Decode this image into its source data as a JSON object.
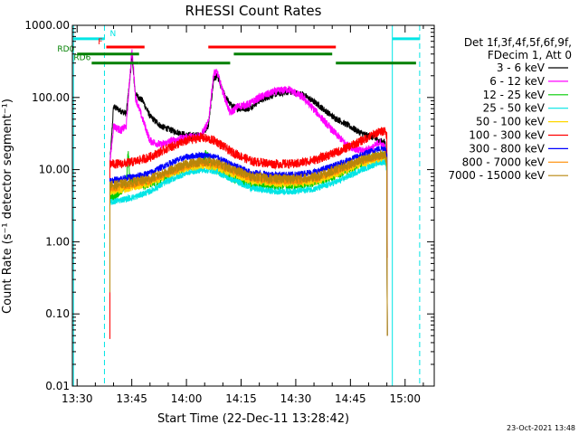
{
  "chart_data": {
    "type": "line",
    "title": "RHESSI Count Rates",
    "xlabel": "Start Time (22-Dec-11 13:28:42)",
    "ylabel": "Count Rate (s⁻¹ detector segment⁻¹)",
    "y_scale": "log",
    "ylim": [
      0.01,
      1000
    ],
    "xlim": [
      "13:28:42",
      "15:08:00"
    ],
    "x_ticks": [
      "13:30",
      "13:45",
      "14:00",
      "14:15",
      "14:30",
      "14:45",
      "15:00"
    ],
    "y_ticks": [
      "0.01",
      "0.10",
      "1.00",
      "10.00",
      "100.00",
      "1000.00"
    ],
    "legend": {
      "position": "right",
      "header": [
        "Det 1f,3f,4f,5f,6f,9f,",
        "FDecim 1, Att 0"
      ]
    },
    "series": [
      {
        "name": "3 - 6 keV",
        "color": "#000000",
        "points": [
          [
            "13:39:00",
            12
          ],
          [
            "13:40:00",
            75
          ],
          [
            "13:42:00",
            65
          ],
          [
            "13:43:30",
            60
          ],
          [
            "13:44:30",
            180
          ],
          [
            "13:45:00",
            400
          ],
          [
            "13:45:30",
            200
          ],
          [
            "13:46:00",
            110
          ],
          [
            "13:48:00",
            90
          ],
          [
            "13:50:00",
            55
          ],
          [
            "13:53:00",
            40
          ],
          [
            "13:56:00",
            35
          ],
          [
            "14:00:00",
            30
          ],
          [
            "14:04:00",
            30
          ],
          [
            "14:06:00",
            40
          ],
          [
            "14:07:30",
            180
          ],
          [
            "14:08:30",
            200
          ],
          [
            "14:10:00",
            120
          ],
          [
            "14:12:00",
            80
          ],
          [
            "14:14:00",
            70
          ],
          [
            "14:17:00",
            70
          ],
          [
            "14:20:00",
            90
          ],
          [
            "14:24:00",
            110
          ],
          [
            "14:28:00",
            120
          ],
          [
            "14:32:00",
            110
          ],
          [
            "14:36:00",
            80
          ],
          [
            "14:40:00",
            55
          ],
          [
            "14:44:00",
            42
          ],
          [
            "14:48:00",
            32
          ],
          [
            "14:51:00",
            28
          ],
          [
            "14:53:00",
            25
          ],
          [
            "14:54:30",
            24
          ],
          [
            "14:55:00",
            15
          ]
        ]
      },
      {
        "name": "6 - 12 keV",
        "color": "#ff00ff",
        "points": [
          [
            "13:39:00",
            12
          ],
          [
            "13:40:00",
            40
          ],
          [
            "13:42:00",
            35
          ],
          [
            "13:43:30",
            40
          ],
          [
            "13:44:30",
            200
          ],
          [
            "13:45:00",
            450
          ],
          [
            "13:45:30",
            250
          ],
          [
            "13:46:00",
            100
          ],
          [
            "13:48:00",
            50
          ],
          [
            "13:50:00",
            25
          ],
          [
            "13:53:00",
            22
          ],
          [
            "13:56:00",
            25
          ],
          [
            "14:00:00",
            28
          ],
          [
            "14:04:00",
            30
          ],
          [
            "14:06:00",
            45
          ],
          [
            "14:07:30",
            220
          ],
          [
            "14:08:30",
            220
          ],
          [
            "14:10:00",
            120
          ],
          [
            "14:12:00",
            60
          ],
          [
            "14:14:00",
            75
          ],
          [
            "14:17:00",
            80
          ],
          [
            "14:20:00",
            100
          ],
          [
            "14:24:00",
            120
          ],
          [
            "14:28:00",
            130
          ],
          [
            "14:32:00",
            100
          ],
          [
            "14:36:00",
            60
          ],
          [
            "14:40:00",
            35
          ],
          [
            "14:44:00",
            22
          ],
          [
            "14:48:00",
            18
          ],
          [
            "14:51:00",
            20
          ],
          [
            "14:53:00",
            24
          ],
          [
            "14:54:30",
            20
          ],
          [
            "14:55:00",
            12
          ]
        ]
      },
      {
        "name": "12 - 25 keV",
        "color": "#00cc00",
        "points": [
          [
            "13:39:00",
            4
          ],
          [
            "13:41:00",
            4.5
          ],
          [
            "13:43:30",
            6
          ],
          [
            "13:44:00",
            18
          ],
          [
            "13:44:30",
            7
          ],
          [
            "13:48:00",
            6
          ],
          [
            "13:52:00",
            7
          ],
          [
            "13:56:00",
            9
          ],
          [
            "14:00:00",
            11
          ],
          [
            "14:04:00",
            12
          ],
          [
            "14:05:30",
            17
          ],
          [
            "14:07:00",
            11
          ],
          [
            "14:12:00",
            8
          ],
          [
            "14:16:00",
            6.5
          ],
          [
            "14:22:00",
            6
          ],
          [
            "14:28:00",
            6
          ],
          [
            "14:34:00",
            6.5
          ],
          [
            "14:40:00",
            8
          ],
          [
            "14:46:00",
            11
          ],
          [
            "14:50:00",
            14
          ],
          [
            "14:54:00",
            16
          ],
          [
            "14:55:00",
            13
          ]
        ]
      },
      {
        "name": "25 - 50 keV",
        "color": "#00e5e5",
        "points": [
          [
            "13:39:00",
            3.5
          ],
          [
            "13:42:00",
            3.8
          ],
          [
            "13:46:00",
            4.2
          ],
          [
            "13:50:00",
            5
          ],
          [
            "13:55:00",
            7
          ],
          [
            "14:00:00",
            9
          ],
          [
            "14:04:00",
            10
          ],
          [
            "14:08:00",
            9.5
          ],
          [
            "14:12:00",
            7.5
          ],
          [
            "14:18:00",
            5.5
          ],
          [
            "14:24:00",
            5
          ],
          [
            "14:30:00",
            5
          ],
          [
            "14:36:00",
            5.5
          ],
          [
            "14:42:00",
            7
          ],
          [
            "14:48:00",
            10
          ],
          [
            "14:52:00",
            12
          ],
          [
            "14:54:30",
            13
          ],
          [
            "14:55:00",
            10
          ]
        ]
      },
      {
        "name": "50 - 100 keV",
        "color": "#ffd700",
        "points": [
          [
            "13:39:00",
            5
          ],
          [
            "13:42:00",
            5.2
          ],
          [
            "13:46:00",
            5.8
          ],
          [
            "13:50:00",
            6.5
          ],
          [
            "13:55:00",
            8.5
          ],
          [
            "14:00:00",
            10.5
          ],
          [
            "14:04:00",
            11.5
          ],
          [
            "14:08:00",
            11
          ],
          [
            "14:12:00",
            9
          ],
          [
            "14:18:00",
            7
          ],
          [
            "14:24:00",
            6.5
          ],
          [
            "14:30:00",
            6.5
          ],
          [
            "14:36:00",
            7
          ],
          [
            "14:42:00",
            9
          ],
          [
            "14:48:00",
            12
          ],
          [
            "14:52:00",
            14
          ],
          [
            "14:54:30",
            15
          ],
          [
            "14:55:00",
            11
          ]
        ]
      },
      {
        "name": "100 - 300 keV",
        "color": "#ff0000",
        "points": [
          [
            "13:39:00",
            12
          ],
          [
            "13:42:00",
            12
          ],
          [
            "13:46:00",
            13
          ],
          [
            "13:50:00",
            15
          ],
          [
            "13:55:00",
            20
          ],
          [
            "14:00:00",
            25
          ],
          [
            "14:04:00",
            28
          ],
          [
            "14:08:00",
            25
          ],
          [
            "14:12:00",
            18
          ],
          [
            "14:18:00",
            13
          ],
          [
            "14:24:00",
            12
          ],
          [
            "14:30:00",
            12
          ],
          [
            "14:36:00",
            14
          ],
          [
            "14:42:00",
            18
          ],
          [
            "14:48:00",
            25
          ],
          [
            "14:52:00",
            32
          ],
          [
            "14:54:30",
            35
          ],
          [
            "14:55:00",
            30
          ]
        ]
      },
      {
        "name": "300 - 800 keV",
        "color": "#0000ff",
        "points": [
          [
            "13:39:00",
            7
          ],
          [
            "13:42:00",
            7.5
          ],
          [
            "13:46:00",
            8
          ],
          [
            "13:50:00",
            9
          ],
          [
            "13:55:00",
            12
          ],
          [
            "14:00:00",
            15
          ],
          [
            "14:04:00",
            16
          ],
          [
            "14:08:00",
            15
          ],
          [
            "14:12:00",
            12
          ],
          [
            "14:18:00",
            9
          ],
          [
            "14:24:00",
            8.5
          ],
          [
            "14:30:00",
            8.5
          ],
          [
            "14:36:00",
            9.5
          ],
          [
            "14:42:00",
            12
          ],
          [
            "14:48:00",
            16
          ],
          [
            "14:52:00",
            19
          ],
          [
            "14:54:30",
            20
          ],
          [
            "14:55:00",
            16
          ]
        ]
      },
      {
        "name": "800 - 7000 keV",
        "color": "#ff8c00",
        "points": [
          [
            "13:39:00",
            5.5
          ],
          [
            "13:42:00",
            5.8
          ],
          [
            "13:46:00",
            6.3
          ],
          [
            "13:50:00",
            7
          ],
          [
            "13:55:00",
            9
          ],
          [
            "14:00:00",
            11
          ],
          [
            "14:04:00",
            12.5
          ],
          [
            "14:08:00",
            12
          ],
          [
            "14:12:00",
            10
          ],
          [
            "14:18:00",
            7.5
          ],
          [
            "14:24:00",
            7
          ],
          [
            "14:30:00",
            7
          ],
          [
            "14:36:00",
            7.5
          ],
          [
            "14:42:00",
            10
          ],
          [
            "14:48:00",
            13
          ],
          [
            "14:52:00",
            15
          ],
          [
            "14:54:30",
            16
          ],
          [
            "14:55:00",
            12
          ]
        ]
      },
      {
        "name": "7000 - 15000 keV",
        "color": "#b8860b",
        "points": [
          [
            "13:39:00",
            6
          ],
          [
            "13:42:00",
            6.3
          ],
          [
            "13:46:00",
            6.8
          ],
          [
            "13:50:00",
            7.5
          ],
          [
            "13:55:00",
            9.5
          ],
          [
            "14:00:00",
            12
          ],
          [
            "14:04:00",
            13
          ],
          [
            "14:08:00",
            12.5
          ],
          [
            "14:12:00",
            10.5
          ],
          [
            "14:18:00",
            8
          ],
          [
            "14:24:00",
            7.5
          ],
          [
            "14:30:00",
            7.5
          ],
          [
            "14:36:00",
            8
          ],
          [
            "14:42:00",
            10.5
          ],
          [
            "14:48:00",
            13.5
          ],
          [
            "14:52:00",
            15.5
          ],
          [
            "14:54:30",
            16.5
          ],
          [
            "14:55:00",
            12.5
          ]
        ]
      }
    ],
    "annotation_bars": [
      {
        "label": "N",
        "color": "#00e5e5",
        "y": 650,
        "segments": [
          [
            "13:29:00",
            "13:37:30"
          ],
          [
            "14:56:30",
            "15:04:00"
          ]
        ]
      },
      {
        "label": "F",
        "color": "#ff0000",
        "y": 500,
        "segments": [
          [
            "13:38:00",
            "13:48:30"
          ],
          [
            "14:06:00",
            "14:41:00"
          ]
        ]
      },
      {
        "label": "RD0",
        "color": "#008000",
        "y": 400,
        "segments": [
          [
            "13:30:00",
            "13:47:00"
          ],
          [
            "14:13:00",
            "14:40:00"
          ]
        ]
      },
      {
        "label": "RD6",
        "color": "#008000",
        "y": 300,
        "segments": [
          [
            "13:34:00",
            "13:47:00"
          ],
          [
            "13:47:00",
            "14:12:00"
          ],
          [
            "14:41:00",
            "15:03:00"
          ]
        ]
      }
    ],
    "vlines": [
      {
        "time": "13:29:00",
        "style": "solid",
        "color": "#00e5e5"
      },
      {
        "time": "13:37:30",
        "style": "dashed",
        "color": "#00e5e5"
      },
      {
        "time": "14:56:30",
        "style": "solid",
        "color": "#00e5e5"
      },
      {
        "time": "15:04:00",
        "style": "dashed",
        "color": "#00e5e5"
      }
    ]
  },
  "footer": {
    "timestamp": "23-Oct-2021 13:48"
  }
}
